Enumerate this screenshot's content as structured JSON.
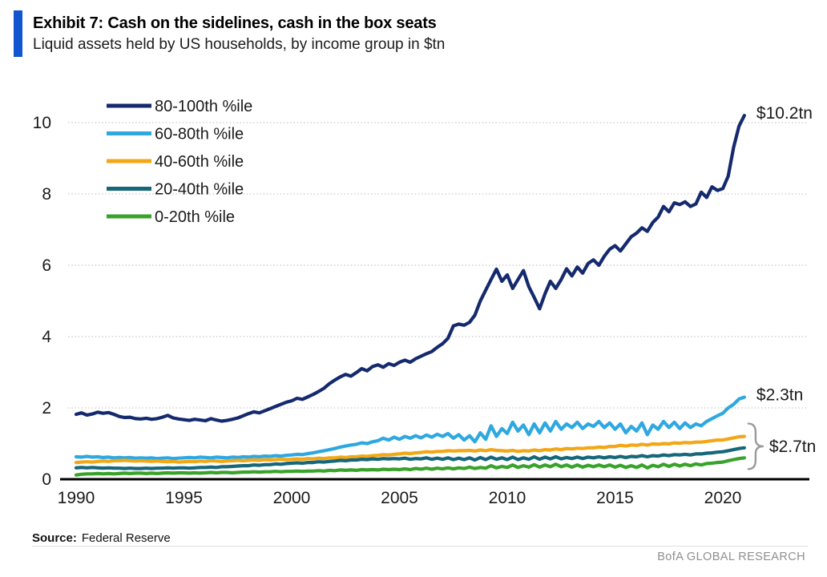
{
  "header": {
    "title": "Exhibit 7: Cash on the sidelines, cash in the box seats",
    "subtitle": "Liquid assets held by US households, by income group in $tn",
    "accent_color": "#1155d0"
  },
  "footer": {
    "source_label": "Source:",
    "source_value": "Federal Reserve",
    "branding": "BofA GLOBAL RESEARCH"
  },
  "chart_data": {
    "type": "line",
    "title": "Liquid assets held by US households, by income group in $tn",
    "x_start": 1990,
    "x_step": 0.25,
    "xticks": [
      1990,
      1995,
      2000,
      2005,
      2010,
      2015,
      2020
    ],
    "yticks": [
      0,
      2,
      4,
      6,
      8,
      10
    ],
    "xlim": [
      1990,
      2021.3
    ],
    "ylim": [
      0,
      10.7
    ],
    "grid": "horizontal-dotted",
    "grid_color": "#cbcbcb",
    "axis_color": "#000000",
    "tick_label_color": "#1a1a1a",
    "annotation_color": "#1a1a1a",
    "brace_color": "#9a9a9a",
    "legend_position": "top-left-inside",
    "series": [
      {
        "name": "80-100th %ile",
        "color": "#152a6e",
        "values": [
          1.82,
          1.86,
          1.8,
          1.83,
          1.88,
          1.85,
          1.87,
          1.82,
          1.76,
          1.73,
          1.74,
          1.7,
          1.69,
          1.71,
          1.68,
          1.7,
          1.74,
          1.79,
          1.72,
          1.69,
          1.67,
          1.65,
          1.68,
          1.66,
          1.64,
          1.7,
          1.66,
          1.63,
          1.65,
          1.68,
          1.72,
          1.78,
          1.84,
          1.89,
          1.86,
          1.92,
          1.98,
          2.04,
          2.1,
          2.16,
          2.2,
          2.27,
          2.24,
          2.31,
          2.38,
          2.46,
          2.55,
          2.68,
          2.78,
          2.87,
          2.94,
          2.89,
          2.99,
          3.1,
          3.04,
          3.16,
          3.21,
          3.14,
          3.24,
          3.19,
          3.28,
          3.34,
          3.28,
          3.38,
          3.45,
          3.52,
          3.58,
          3.7,
          3.8,
          3.95,
          4.3,
          4.35,
          4.32,
          4.4,
          4.6,
          5.0,
          5.3,
          5.6,
          5.89,
          5.55,
          5.73,
          5.35,
          5.6,
          5.85,
          5.4,
          5.1,
          4.78,
          5.2,
          5.55,
          5.35,
          5.6,
          5.9,
          5.7,
          5.95,
          5.78,
          6.05,
          6.15,
          6.0,
          6.25,
          6.45,
          6.55,
          6.4,
          6.6,
          6.8,
          6.9,
          7.05,
          6.95,
          7.2,
          7.35,
          7.65,
          7.5,
          7.75,
          7.7,
          7.78,
          7.65,
          7.72,
          8.05,
          7.9,
          8.2,
          8.1,
          8.15,
          8.5,
          9.3,
          9.9,
          10.2
        ]
      },
      {
        "name": "60-80th %ile",
        "color": "#2ea8e0",
        "values": [
          0.63,
          0.62,
          0.64,
          0.62,
          0.63,
          0.61,
          0.62,
          0.6,
          0.61,
          0.6,
          0.61,
          0.59,
          0.6,
          0.59,
          0.6,
          0.58,
          0.59,
          0.6,
          0.58,
          0.59,
          0.6,
          0.61,
          0.6,
          0.62,
          0.61,
          0.6,
          0.62,
          0.61,
          0.6,
          0.62,
          0.61,
          0.63,
          0.62,
          0.64,
          0.63,
          0.65,
          0.64,
          0.66,
          0.65,
          0.67,
          0.68,
          0.7,
          0.69,
          0.72,
          0.74,
          0.77,
          0.8,
          0.83,
          0.86,
          0.9,
          0.93,
          0.96,
          0.98,
          1.02,
          1.0,
          1.05,
          1.08,
          1.15,
          1.1,
          1.18,
          1.12,
          1.2,
          1.15,
          1.22,
          1.16,
          1.24,
          1.18,
          1.26,
          1.2,
          1.28,
          1.15,
          1.25,
          1.1,
          1.22,
          1.05,
          1.3,
          1.12,
          1.5,
          1.2,
          1.42,
          1.28,
          1.6,
          1.35,
          1.52,
          1.25,
          1.55,
          1.3,
          1.58,
          1.35,
          1.62,
          1.4,
          1.55,
          1.45,
          1.6,
          1.42,
          1.55,
          1.48,
          1.62,
          1.45,
          1.58,
          1.4,
          1.55,
          1.3,
          1.48,
          1.35,
          1.58,
          1.25,
          1.52,
          1.4,
          1.62,
          1.45,
          1.6,
          1.42,
          1.58,
          1.45,
          1.55,
          1.5,
          1.62,
          1.7,
          1.78,
          1.85,
          2.0,
          2.1,
          2.25,
          2.3
        ]
      },
      {
        "name": "40-60th %ile",
        "color": "#f2a716",
        "values": [
          0.47,
          0.48,
          0.49,
          0.48,
          0.5,
          0.51,
          0.5,
          0.52,
          0.52,
          0.53,
          0.52,
          0.51,
          0.52,
          0.51,
          0.5,
          0.51,
          0.5,
          0.49,
          0.5,
          0.48,
          0.49,
          0.5,
          0.49,
          0.51,
          0.5,
          0.52,
          0.51,
          0.5,
          0.51,
          0.52,
          0.53,
          0.52,
          0.53,
          0.54,
          0.53,
          0.55,
          0.54,
          0.55,
          0.56,
          0.55,
          0.56,
          0.57,
          0.56,
          0.58,
          0.57,
          0.59,
          0.58,
          0.6,
          0.6,
          0.62,
          0.61,
          0.63,
          0.63,
          0.65,
          0.64,
          0.66,
          0.67,
          0.69,
          0.68,
          0.7,
          0.71,
          0.73,
          0.72,
          0.74,
          0.75,
          0.77,
          0.76,
          0.78,
          0.78,
          0.8,
          0.79,
          0.8,
          0.8,
          0.81,
          0.79,
          0.82,
          0.8,
          0.83,
          0.81,
          0.8,
          0.79,
          0.81,
          0.78,
          0.8,
          0.79,
          0.82,
          0.8,
          0.83,
          0.82,
          0.85,
          0.83,
          0.86,
          0.85,
          0.87,
          0.86,
          0.88,
          0.88,
          0.9,
          0.89,
          0.92,
          0.92,
          0.95,
          0.93,
          0.96,
          0.95,
          0.98,
          0.96,
          0.99,
          0.98,
          1.0,
          0.99,
          1.02,
          1.01,
          1.03,
          1.02,
          1.04,
          1.04,
          1.06,
          1.08,
          1.1,
          1.1,
          1.13,
          1.16,
          1.19,
          1.2
        ]
      },
      {
        "name": "20-40th %ile",
        "color": "#16677a",
        "values": [
          0.32,
          0.33,
          0.32,
          0.33,
          0.32,
          0.31,
          0.32,
          0.31,
          0.31,
          0.3,
          0.31,
          0.3,
          0.3,
          0.31,
          0.3,
          0.31,
          0.31,
          0.32,
          0.31,
          0.32,
          0.32,
          0.31,
          0.32,
          0.33,
          0.33,
          0.34,
          0.33,
          0.35,
          0.35,
          0.36,
          0.37,
          0.38,
          0.38,
          0.4,
          0.39,
          0.41,
          0.41,
          0.43,
          0.42,
          0.44,
          0.45,
          0.46,
          0.45,
          0.47,
          0.47,
          0.49,
          0.48,
          0.5,
          0.51,
          0.53,
          0.52,
          0.54,
          0.54,
          0.56,
          0.55,
          0.57,
          0.56,
          0.58,
          0.57,
          0.58,
          0.57,
          0.59,
          0.56,
          0.58,
          0.57,
          0.6,
          0.56,
          0.59,
          0.56,
          0.6,
          0.55,
          0.59,
          0.55,
          0.6,
          0.54,
          0.61,
          0.55,
          0.62,
          0.56,
          0.6,
          0.55,
          0.62,
          0.55,
          0.6,
          0.56,
          0.63,
          0.56,
          0.62,
          0.57,
          0.63,
          0.57,
          0.61,
          0.58,
          0.62,
          0.58,
          0.62,
          0.6,
          0.63,
          0.6,
          0.63,
          0.61,
          0.64,
          0.61,
          0.64,
          0.63,
          0.66,
          0.63,
          0.66,
          0.65,
          0.68,
          0.66,
          0.69,
          0.68,
          0.7,
          0.68,
          0.71,
          0.71,
          0.73,
          0.74,
          0.76,
          0.77,
          0.8,
          0.83,
          0.86,
          0.88
        ]
      },
      {
        "name": "0-20th %ile",
        "color": "#38a32a",
        "values": [
          0.12,
          0.14,
          0.15,
          0.15,
          0.16,
          0.15,
          0.16,
          0.15,
          0.16,
          0.17,
          0.16,
          0.17,
          0.17,
          0.16,
          0.17,
          0.16,
          0.17,
          0.18,
          0.17,
          0.18,
          0.18,
          0.17,
          0.18,
          0.17,
          0.18,
          0.19,
          0.18,
          0.19,
          0.19,
          0.18,
          0.19,
          0.2,
          0.2,
          0.21,
          0.2,
          0.21,
          0.21,
          0.22,
          0.21,
          0.22,
          0.22,
          0.23,
          0.22,
          0.23,
          0.23,
          0.24,
          0.23,
          0.25,
          0.24,
          0.26,
          0.25,
          0.26,
          0.25,
          0.27,
          0.26,
          0.27,
          0.26,
          0.28,
          0.27,
          0.28,
          0.27,
          0.29,
          0.27,
          0.3,
          0.28,
          0.31,
          0.28,
          0.31,
          0.29,
          0.32,
          0.29,
          0.32,
          0.3,
          0.34,
          0.3,
          0.33,
          0.31,
          0.38,
          0.32,
          0.36,
          0.33,
          0.4,
          0.33,
          0.38,
          0.34,
          0.41,
          0.34,
          0.4,
          0.35,
          0.42,
          0.35,
          0.4,
          0.34,
          0.4,
          0.34,
          0.39,
          0.35,
          0.4,
          0.35,
          0.4,
          0.34,
          0.39,
          0.33,
          0.38,
          0.33,
          0.4,
          0.32,
          0.39,
          0.35,
          0.42,
          0.36,
          0.42,
          0.37,
          0.42,
          0.38,
          0.43,
          0.4,
          0.44,
          0.45,
          0.47,
          0.48,
          0.52,
          0.55,
          0.58,
          0.6
        ]
      }
    ],
    "annotations": [
      {
        "text": "$10.2tn",
        "series": "80-100th %ile",
        "position": "end"
      },
      {
        "text": "$2.3tn",
        "series": "60-80th %ile",
        "position": "end"
      },
      {
        "text": "$2.7tn",
        "group": [
          "40-60th %ile",
          "20-40th %ile",
          "0-20th %ile"
        ],
        "position": "end",
        "brace": true
      }
    ]
  }
}
